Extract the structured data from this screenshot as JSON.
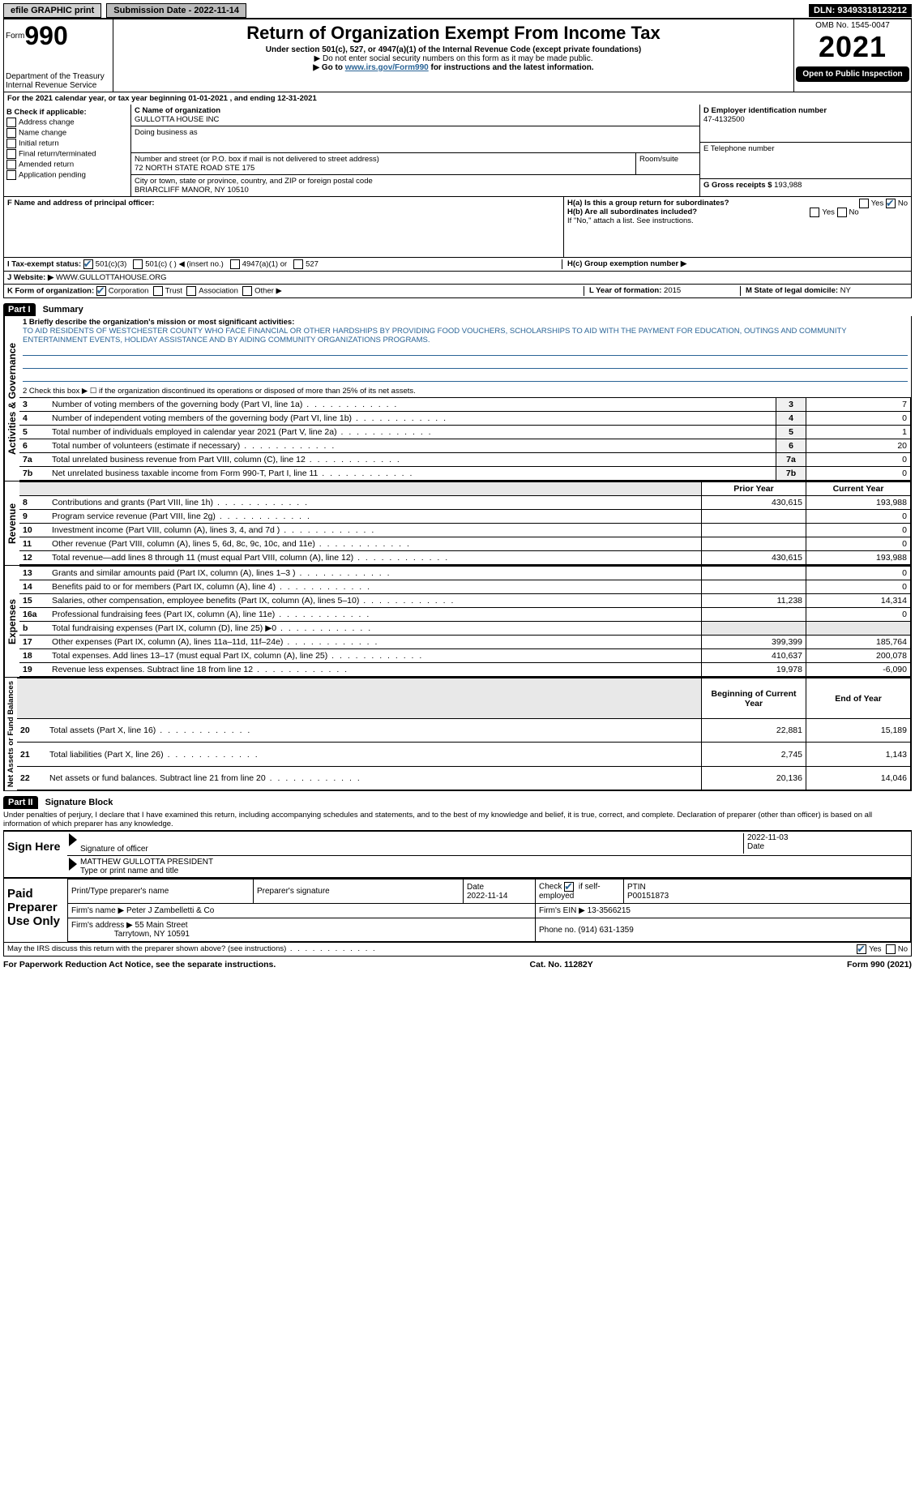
{
  "topbar": {
    "efile": "efile GRAPHIC print",
    "submission_label": "Submission Date - 2022-11-14",
    "dln": "DLN: 93493318123212"
  },
  "header": {
    "form_prefix": "Form",
    "form_number": "990",
    "title": "Return of Organization Exempt From Income Tax",
    "subtitle": "Under section 501(c), 527, or 4947(a)(1) of the Internal Revenue Code (except private foundations)",
    "note1": "▶ Do not enter social security numbers on this form as it may be made public.",
    "note2": "▶ Go to www.irs.gov/Form990 for instructions and the latest information.",
    "link_text": "www.irs.gov/Form990",
    "dept": "Department of the Treasury",
    "irs": "Internal Revenue Service",
    "omb_label": "OMB No. 1545-0047",
    "year": "2021",
    "open": "Open to Public Inspection"
  },
  "period_line": "For the 2021 calendar year, or tax year beginning 01-01-2021     , and ending 12-31-2021",
  "section_b": {
    "heading": "B Check if applicable:",
    "items": [
      "Address change",
      "Name change",
      "Initial return",
      "Final return/terminated",
      "Amended return",
      "Application pending"
    ]
  },
  "section_c": {
    "name_label": "C Name of organization",
    "name": "GULLOTTA HOUSE INC",
    "dba_label": "Doing business as",
    "dba": "",
    "street_label": "Number and street (or P.O. box if mail is not delivered to street address)",
    "street": "72 NORTH STATE ROAD STE 175",
    "room_label": "Room/suite",
    "city_label": "City or town, state or province, country, and ZIP or foreign postal code",
    "city": "BRIARCLIFF MANOR, NY  10510"
  },
  "section_d": {
    "label": "D Employer identification number",
    "value": "47-4132500"
  },
  "section_e": {
    "label": "E Telephone number",
    "value": ""
  },
  "section_g": {
    "label": "G Gross receipts $",
    "value": "193,988"
  },
  "section_f": {
    "label": "F  Name and address of principal officer:"
  },
  "section_h": {
    "a_label": "H(a)  Is this a group return for subordinates?",
    "b_label": "H(b)  Are all subordinates included?",
    "b_note": "If \"No,\" attach a list. See instructions.",
    "c_label": "H(c)  Group exemption number ▶",
    "yes": "Yes",
    "no": "No"
  },
  "tax_exempt": {
    "label": "I  Tax-exempt status:",
    "c3": "501(c)(3)",
    "c_blank": "501(c) (   ) ◀ (insert no.)",
    "a1": "4947(a)(1) or",
    "527": "527"
  },
  "website": {
    "label": "J  Website: ▶",
    "value": "WWW.GULLOTTAHOUSE.ORG"
  },
  "form_org": {
    "label": "K Form of organization:",
    "corp": "Corporation",
    "trust": "Trust",
    "assoc": "Association",
    "other": "Other ▶"
  },
  "year_formation": {
    "label": "L Year of formation:",
    "value": "2015"
  },
  "domicile": {
    "label": "M State of legal domicile:",
    "value": "NY"
  },
  "part1": {
    "header": "Part I",
    "title": "Summary",
    "mission_label": "1  Briefly describe the organization's mission or most significant activities:",
    "mission": "TO AID RESIDENTS OF WESTCHESTER COUNTY WHO FACE FINANCIAL OR OTHER HARDSHIPS BY PROVIDING FOOD VOUCHERS, SCHOLARSHIPS TO AID WITH THE PAYMENT FOR EDUCATION, OUTINGS AND COMMUNITY ENTERTAINMENT EVENTS, HOLIDAY ASSISTANCE AND BY AIDING COMMUNITY ORGANIZATIONS PROGRAMS.",
    "line2": "2   Check this box ▶ ☐  if the organization discontinued its operations or disposed of more than 25% of its net assets.",
    "sidebar_activities": "Activities & Governance",
    "sidebar_revenue": "Revenue",
    "sidebar_expenses": "Expenses",
    "sidebar_net": "Net Assets or Fund Balances",
    "rows_top": [
      {
        "n": "3",
        "label": "Number of voting members of the governing body (Part VI, line 1a)",
        "val": "7"
      },
      {
        "n": "4",
        "label": "Number of independent voting members of the governing body (Part VI, line 1b)",
        "val": "0"
      },
      {
        "n": "5",
        "label": "Total number of individuals employed in calendar year 2021 (Part V, line 2a)",
        "val": "1"
      },
      {
        "n": "6",
        "label": "Total number of volunteers (estimate if necessary)",
        "val": "20"
      },
      {
        "n": "7a",
        "label": "Total unrelated business revenue from Part VIII, column (C), line 12",
        "val": "0"
      },
      {
        "n": "7b",
        "label": "Net unrelated business taxable income from Form 990-T, Part I, line 11",
        "val": "0"
      }
    ],
    "col_prior": "Prior Year",
    "col_current": "Current Year",
    "rows_rev": [
      {
        "n": "8",
        "label": "Contributions and grants (Part VIII, line 1h)",
        "prior": "430,615",
        "cur": "193,988"
      },
      {
        "n": "9",
        "label": "Program service revenue (Part VIII, line 2g)",
        "prior": "",
        "cur": "0"
      },
      {
        "n": "10",
        "label": "Investment income (Part VIII, column (A), lines 3, 4, and 7d )",
        "prior": "",
        "cur": "0"
      },
      {
        "n": "11",
        "label": "Other revenue (Part VIII, column (A), lines 5, 6d, 8c, 9c, 10c, and 11e)",
        "prior": "",
        "cur": "0"
      },
      {
        "n": "12",
        "label": "Total revenue—add lines 8 through 11 (must equal Part VIII, column (A), line 12)",
        "prior": "430,615",
        "cur": "193,988"
      }
    ],
    "rows_exp": [
      {
        "n": "13",
        "label": "Grants and similar amounts paid (Part IX, column (A), lines 1–3 )",
        "prior": "",
        "cur": "0"
      },
      {
        "n": "14",
        "label": "Benefits paid to or for members (Part IX, column (A), line 4)",
        "prior": "",
        "cur": "0"
      },
      {
        "n": "15",
        "label": "Salaries, other compensation, employee benefits (Part IX, column (A), lines 5–10)",
        "prior": "11,238",
        "cur": "14,314"
      },
      {
        "n": "16a",
        "label": "Professional fundraising fees (Part IX, column (A), line 11e)",
        "prior": "",
        "cur": "0"
      },
      {
        "n": "b",
        "label": "Total fundraising expenses (Part IX, column (D), line 25) ▶0",
        "prior": "GREY",
        "cur": "GREY"
      },
      {
        "n": "17",
        "label": "Other expenses (Part IX, column (A), lines 11a–11d, 11f–24e)",
        "prior": "399,399",
        "cur": "185,764"
      },
      {
        "n": "18",
        "label": "Total expenses. Add lines 13–17 (must equal Part IX, column (A), line 25)",
        "prior": "410,637",
        "cur": "200,078"
      },
      {
        "n": "19",
        "label": "Revenue less expenses. Subtract line 18 from line 12",
        "prior": "19,978",
        "cur": "-6,090"
      }
    ],
    "col_begin": "Beginning of Current Year",
    "col_end": "End of Year",
    "rows_net": [
      {
        "n": "20",
        "label": "Total assets (Part X, line 16)",
        "prior": "22,881",
        "cur": "15,189"
      },
      {
        "n": "21",
        "label": "Total liabilities (Part X, line 26)",
        "prior": "2,745",
        "cur": "1,143"
      },
      {
        "n": "22",
        "label": "Net assets or fund balances. Subtract line 21 from line 20",
        "prior": "20,136",
        "cur": "14,046"
      }
    ]
  },
  "part2": {
    "header": "Part II",
    "title": "Signature Block",
    "declaration": "Under penalties of perjury, I declare that I have examined this return, including accompanying schedules and statements, and to the best of my knowledge and belief, it is true, correct, and complete. Declaration of preparer (other than officer) is based on all information of which preparer has any knowledge.",
    "sign_here": "Sign Here",
    "sig_officer": "Signature of officer",
    "date_label": "Date",
    "sig_date": "2022-11-03",
    "name_title": "MATTHEW GULLOTTA  PRESIDENT",
    "name_title_label": "Type or print name and title",
    "paid": "Paid Preparer Use Only",
    "prep_name_label": "Print/Type preparer's name",
    "prep_sig_label": "Preparer's signature",
    "prep_date_label": "Date",
    "prep_date": "2022-11-14",
    "self_emp": "Check ☑ if self-employed",
    "ptin_label": "PTIN",
    "ptin": "P00151873",
    "firm_name_label": "Firm's name    ▶",
    "firm_name": "Peter J Zambelletti & Co",
    "firm_ein_label": "Firm's EIN ▶",
    "firm_ein": "13-3566215",
    "firm_addr_label": "Firm's address ▶",
    "firm_addr1": "55 Main Street",
    "firm_addr2": "Tarrytown, NY  10591",
    "phone_label": "Phone no.",
    "phone": "(914) 631-1359",
    "discuss": "May the IRS discuss this return with the preparer shown above? (see instructions)",
    "yes": "Yes",
    "no": "No"
  },
  "footer": {
    "pra": "For Paperwork Reduction Act Notice, see the separate instructions.",
    "cat": "Cat. No. 11282Y",
    "form": "Form 990 (2021)"
  }
}
